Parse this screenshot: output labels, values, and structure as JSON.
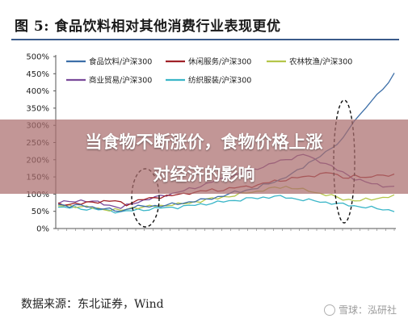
{
  "header": {
    "title": "图 5:  食品饮料相对其他消费行业表现更优"
  },
  "banner": {
    "line1": "当食物不断涨价，食物价格上涨",
    "line2": "对经济的影响"
  },
  "footer": {
    "source": "数据来源：东北证券，Wind",
    "watermark": "雪球：泓研社"
  },
  "colors": {
    "title_rule": "#3a5a8a",
    "banner_bg": "#aa6e6e",
    "annotation": "#111111"
  },
  "chart_data": {
    "type": "line",
    "title": "",
    "xlabel": "",
    "ylabel": "",
    "ylim": [
      0,
      500
    ],
    "yticks": [
      "0%",
      "50%",
      "100%",
      "150%",
      "200%",
      "250%",
      "300%",
      "350%",
      "400%",
      "450%",
      "500%"
    ],
    "grid": false,
    "legend": "top-left",
    "x_points": 60,
    "series": [
      {
        "name": "食品饮料/沪深300",
        "color": "#3d6fa8",
        "values": [
          70,
          68,
          66,
          67,
          66,
          64,
          62,
          60,
          58,
          55,
          52,
          50,
          56,
          62,
          64,
          63,
          65,
          66,
          66,
          68,
          70,
          72,
          74,
          78,
          80,
          82,
          85,
          88,
          92,
          96,
          100,
          105,
          108,
          112,
          115,
          118,
          125,
          130,
          138,
          142,
          150,
          158,
          168,
          180,
          192,
          200,
          210,
          220,
          235,
          248,
          262,
          290,
          310,
          330,
          355,
          370,
          390,
          405,
          420,
          455
        ]
      },
      {
        "name": "休闲服务/沪深300",
        "color": "#a02228",
        "values": [
          70,
          70,
          72,
          73,
          72,
          74,
          76,
          78,
          80,
          80,
          80,
          74,
          70,
          76,
          82,
          85,
          86,
          90,
          92,
          95,
          96,
          98,
          100,
          104,
          106,
          108,
          110,
          112,
          110,
          114,
          116,
          118,
          120,
          122,
          124,
          126,
          130,
          134,
          138,
          140,
          142,
          145,
          148,
          150,
          152,
          155,
          158,
          160,
          162,
          155,
          150,
          148,
          152,
          150,
          148,
          150,
          160,
          152,
          150,
          160
        ]
      },
      {
        "name": "农林牧渔/沪深300",
        "color": "#b4c64a",
        "values": [
          65,
          66,
          66,
          65,
          64,
          62,
          60,
          58,
          56,
          55,
          54,
          52,
          56,
          60,
          62,
          62,
          64,
          66,
          66,
          68,
          70,
          70,
          72,
          74,
          78,
          80,
          84,
          86,
          88,
          92,
          94,
          96,
          100,
          104,
          106,
          108,
          112,
          115,
          118,
          120,
          122,
          118,
          116,
          112,
          110,
          106,
          102,
          98,
          95,
          90,
          86,
          84,
          82,
          80,
          84,
          86,
          88,
          90,
          92,
          94
        ]
      },
      {
        "name": "商业贸易/沪深300",
        "color": "#7a4a9a",
        "values": [
          75,
          76,
          78,
          80,
          82,
          80,
          78,
          76,
          72,
          68,
          64,
          60,
          66,
          72,
          78,
          82,
          86,
          90,
          94,
          98,
          102,
          106,
          110,
          114,
          118,
          124,
          130,
          136,
          140,
          146,
          150,
          155,
          160,
          165,
          170,
          175,
          180,
          186,
          192,
          196,
          200,
          205,
          210,
          215,
          210,
          200,
          195,
          190,
          180,
          170,
          162,
          155,
          145,
          140,
          135,
          130,
          128,
          125,
          122,
          120
        ]
      },
      {
        "name": "纺织服装/沪深300",
        "color": "#3bb6c8",
        "values": [
          62,
          61,
          60,
          60,
          58,
          57,
          56,
          55,
          54,
          52,
          50,
          48,
          50,
          52,
          54,
          55,
          56,
          58,
          60,
          60,
          62,
          62,
          64,
          66,
          68,
          70,
          72,
          74,
          76,
          78,
          80,
          82,
          84,
          86,
          88,
          88,
          90,
          92,
          94,
          92,
          90,
          88,
          86,
          84,
          82,
          80,
          78,
          76,
          74,
          72,
          70,
          68,
          66,
          64,
          62,
          60,
          58,
          56,
          54,
          52
        ]
      }
    ]
  }
}
